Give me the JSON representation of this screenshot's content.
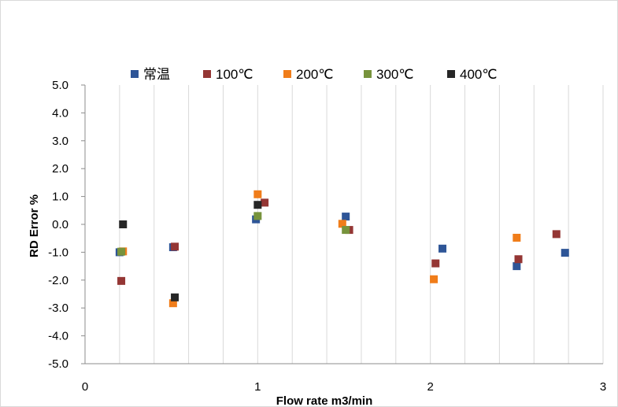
{
  "chart_data": {
    "type": "scatter",
    "title": "",
    "xlabel": "Flow rate  m3/min",
    "ylabel": "RD Error  %",
    "xlim": [
      0,
      3
    ],
    "ylim": [
      -5.0,
      5.0
    ],
    "x_ticks": [
      "0",
      "1",
      "2",
      "3"
    ],
    "y_ticks": [
      "5.0",
      "4.0",
      "3.0",
      "2.0",
      "1.0",
      "0.0",
      "-1.0",
      "-2.0",
      "-3.0",
      "-4.0",
      "-5.0"
    ],
    "grid": "vertical",
    "legend_position": "top",
    "series": [
      {
        "name": "常温",
        "color": "#2e5597",
        "points": [
          [
            0.2,
            -1.0
          ],
          [
            0.51,
            -0.82
          ],
          [
            0.99,
            0.18
          ],
          [
            1.51,
            0.28
          ],
          [
            2.07,
            -0.87
          ],
          [
            2.5,
            -1.5
          ],
          [
            2.78,
            -1.02
          ]
        ]
      },
      {
        "name": "100℃",
        "color": "#943634",
        "points": [
          [
            0.21,
            -2.03
          ],
          [
            0.52,
            -0.8
          ],
          [
            1.04,
            0.78
          ],
          [
            1.53,
            -0.2
          ],
          [
            2.03,
            -1.4
          ],
          [
            2.51,
            -1.25
          ],
          [
            2.73,
            -0.35
          ]
        ]
      },
      {
        "name": "200℃",
        "color": "#f07d1a",
        "points": [
          [
            0.22,
            -0.97
          ],
          [
            0.51,
            -2.83
          ],
          [
            1.0,
            1.08
          ],
          [
            1.49,
            0.02
          ],
          [
            2.02,
            -1.97
          ],
          [
            2.5,
            -0.48
          ]
        ]
      },
      {
        "name": "300℃",
        "color": "#77933c",
        "points": [
          [
            0.21,
            -0.98
          ],
          [
            1.0,
            0.3
          ],
          [
            1.51,
            -0.2
          ]
        ]
      },
      {
        "name": "400℃",
        "color": "#262626",
        "points": [
          [
            0.22,
            0.0
          ],
          [
            0.52,
            -2.62
          ],
          [
            1.0,
            0.7
          ]
        ]
      }
    ]
  }
}
